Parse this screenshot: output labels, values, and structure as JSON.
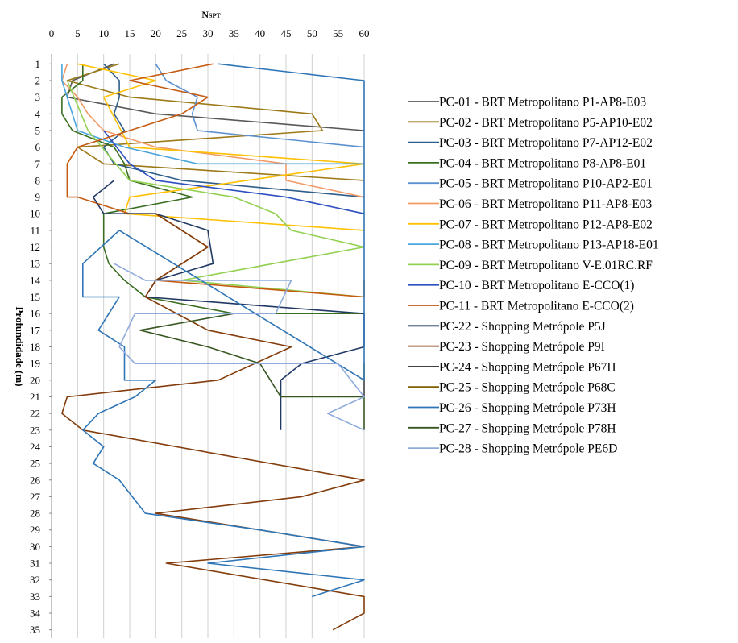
{
  "chart_data": {
    "type": "line",
    "title": "",
    "xlabel": "NSPT",
    "ylabel": "Profundidade (m)",
    "xlim": [
      0,
      60
    ],
    "ylim": [
      1,
      35
    ],
    "x_axis_position": "top",
    "y_axis_inverted": true,
    "grid": "vertical",
    "legend_position": "right",
    "xticks": [
      "0",
      "5",
      "10",
      "15",
      "20",
      "25",
      "30",
      "35",
      "40",
      "45",
      "50",
      "55",
      "60"
    ],
    "yticks": [
      "1",
      "2",
      "3",
      "4",
      "5",
      "6",
      "7",
      "8",
      "9",
      "10",
      "11",
      "12",
      "13",
      "14",
      "15",
      "16",
      "17",
      "18",
      "19",
      "20",
      "21",
      "22",
      "23",
      "24",
      "25",
      "26",
      "27",
      "28",
      "29",
      "30",
      "31",
      "32",
      "33",
      "34",
      "35"
    ],
    "series": [
      {
        "name": "PC-01 - BRT Metropolitano P1-AP8-E03",
        "color": "#595959",
        "points": [
          [
            12,
            1
          ],
          [
            4,
            2
          ],
          [
            3,
            3
          ],
          [
            20,
            4
          ],
          [
            60,
            5
          ]
        ]
      },
      {
        "name": "PC-02 - BRT Metropolitano P5-AP10-E02",
        "color": "#9c7a18",
        "points": [
          [
            13,
            1
          ],
          [
            3,
            2
          ],
          [
            15,
            3
          ],
          [
            50,
            4
          ],
          [
            52,
            5
          ],
          [
            5,
            6
          ],
          [
            10,
            7
          ],
          [
            60,
            8
          ]
        ]
      },
      {
        "name": "PC-03 - BRT Metropolitano P7-AP12-E02",
        "color": "#2e5d8a",
        "points": [
          [
            10,
            1
          ],
          [
            13,
            2
          ],
          [
            13,
            3
          ],
          [
            12,
            4
          ],
          [
            14,
            5
          ],
          [
            10,
            6
          ],
          [
            12,
            7
          ],
          [
            25,
            8
          ],
          [
            60,
            9
          ]
        ]
      },
      {
        "name": "PC-04 - BRT Metropolitano P8-AP8-E01",
        "color": "#3a6e20",
        "points": [
          [
            6,
            1
          ],
          [
            6,
            2
          ],
          [
            2,
            3
          ],
          [
            2,
            4
          ],
          [
            4,
            5
          ],
          [
            12,
            6
          ],
          [
            14,
            7
          ],
          [
            15,
            8
          ],
          [
            27,
            9
          ],
          [
            10,
            10
          ],
          [
            10,
            11
          ],
          [
            10,
            12
          ],
          [
            11,
            13
          ],
          [
            14,
            14
          ],
          [
            18,
            15
          ],
          [
            35,
            16
          ],
          [
            60,
            16
          ]
        ]
      },
      {
        "name": "PC-05 - BRT Metropolitano P10-AP2-E01",
        "color": "#5b91d0",
        "points": [
          [
            20,
            1
          ],
          [
            22,
            2
          ],
          [
            28,
            3
          ],
          [
            27,
            4
          ],
          [
            28,
            5
          ],
          [
            60,
            6
          ]
        ]
      },
      {
        "name": "PC-06 - BRT Metropolitano P11-AP8-E03",
        "color": "#f29a68",
        "points": [
          [
            3,
            1
          ],
          [
            2,
            2
          ],
          [
            5,
            3
          ],
          [
            7,
            4
          ],
          [
            10,
            5
          ],
          [
            20,
            6
          ],
          [
            45,
            7
          ],
          [
            45,
            8
          ],
          [
            60,
            9
          ]
        ]
      },
      {
        "name": "PC-07 - BRT Metropolitano P12-AP8-E02",
        "color": "#ffc000",
        "points": [
          [
            5,
            1
          ],
          [
            20,
            2
          ],
          [
            10,
            3
          ],
          [
            15,
            6
          ],
          [
            60,
            7
          ],
          [
            15,
            9
          ],
          [
            14,
            10
          ],
          [
            60,
            11
          ]
        ]
      },
      {
        "name": "PC-08 - BRT Metropolitano P13-AP18-E01",
        "color": "#4aa6dd",
        "points": [
          [
            2,
            1
          ],
          [
            2,
            2
          ],
          [
            3,
            3
          ],
          [
            5,
            5
          ],
          [
            14,
            6
          ],
          [
            28,
            7
          ],
          [
            60,
            7
          ]
        ]
      },
      {
        "name": "PC-09 - BRT Metropolitano V-E.01RC.RF",
        "color": "#92d050",
        "points": [
          [
            3,
            2
          ],
          [
            7,
            5
          ],
          [
            15,
            8
          ],
          [
            35,
            9
          ],
          [
            43,
            10
          ],
          [
            46,
            11
          ],
          [
            60,
            12
          ],
          [
            25,
            14
          ],
          [
            60,
            15
          ]
        ]
      },
      {
        "name": "PC-10 - BRT Metropolitano E-CCO(1)",
        "color": "#2d4fc0",
        "points": [
          [
            10,
            5
          ],
          [
            15,
            7
          ],
          [
            20,
            8
          ],
          [
            45,
            9
          ],
          [
            60,
            10
          ]
        ]
      },
      {
        "name": "PC-11 - BRT Metropolitano E-CCO(2)",
        "color": "#c55a11",
        "points": [
          [
            31,
            1
          ],
          [
            15,
            2
          ],
          [
            30,
            3
          ],
          [
            25,
            4
          ],
          [
            5,
            6
          ],
          [
            3,
            7
          ],
          [
            3,
            9
          ],
          [
            5,
            9
          ],
          [
            15,
            10
          ],
          [
            20,
            10
          ],
          [
            30,
            12
          ],
          [
            20,
            14
          ],
          [
            60,
            15
          ],
          [
            60,
            14
          ]
        ]
      },
      {
        "name": "PC-22 - Shopping Metrópole P5J",
        "color": "#1f3864",
        "points": [
          [
            12,
            8
          ],
          [
            8,
            9
          ],
          [
            10,
            10
          ],
          [
            20,
            10
          ],
          [
            30,
            11
          ],
          [
            31,
            13
          ],
          [
            20,
            14
          ],
          [
            18,
            15
          ],
          [
            60,
            16
          ],
          [
            60,
            18
          ],
          [
            48,
            19
          ],
          [
            44,
            20
          ],
          [
            44,
            23
          ]
        ]
      },
      {
        "name": "PC-23 - Shopping Metrópole P9I",
        "color": "#833c0b",
        "points": [
          [
            20,
            10
          ],
          [
            30,
            12
          ],
          [
            20,
            14
          ],
          [
            18,
            15
          ],
          [
            30,
            17
          ],
          [
            46,
            18
          ],
          [
            32,
            20
          ],
          [
            3,
            21
          ],
          [
            2,
            22
          ],
          [
            6,
            23
          ],
          [
            60,
            26
          ],
          [
            48,
            27
          ],
          [
            20,
            28
          ],
          [
            60,
            30
          ],
          [
            22,
            31
          ],
          [
            60,
            33
          ],
          [
            60,
            34
          ],
          [
            54,
            35
          ]
        ]
      },
      {
        "name": "PC-24 - Shopping Metrópole P67H",
        "color": "#404040",
        "points": [
          [
            60,
            20
          ],
          [
            60,
            21
          ]
        ]
      },
      {
        "name": "PC-25 - Shopping Metrópole P68C",
        "color": "#7f6000",
        "points": [
          [
            60,
            19
          ],
          [
            60,
            20
          ]
        ]
      },
      {
        "name": "PC-26 - Shopping Metrópole P73H",
        "color": "#2e75b6",
        "points": [
          [
            32,
            1
          ],
          [
            60,
            2
          ],
          [
            60,
            10
          ],
          [
            60,
            16
          ],
          [
            60,
            20
          ],
          [
            13,
            11
          ],
          [
            6,
            13
          ],
          [
            6,
            15
          ],
          [
            13,
            15
          ],
          [
            9,
            17
          ],
          [
            14,
            18
          ],
          [
            14,
            20
          ],
          [
            20,
            20
          ],
          [
            16,
            21
          ],
          [
            9,
            22
          ],
          [
            6,
            23
          ],
          [
            10,
            24
          ],
          [
            8,
            25
          ],
          [
            13,
            26
          ],
          [
            18,
            28
          ],
          [
            40,
            29
          ],
          [
            60,
            30
          ],
          [
            30,
            31
          ],
          [
            60,
            32
          ],
          [
            50,
            33
          ]
        ]
      },
      {
        "name": "PC-27 - Shopping Metrópole P78H",
        "color": "#385723",
        "points": [
          [
            35,
            16
          ],
          [
            17,
            17
          ],
          [
            30,
            18
          ],
          [
            40,
            19
          ],
          [
            42,
            20
          ],
          [
            44,
            21
          ],
          [
            60,
            21
          ],
          [
            60,
            23
          ]
        ]
      },
      {
        "name": "PC-28 - Shopping Metrópole PE6D",
        "color": "#8eaadb",
        "points": [
          [
            12,
            13
          ],
          [
            18,
            14
          ],
          [
            46,
            14
          ],
          [
            43,
            16
          ],
          [
            16,
            16
          ],
          [
            13,
            18
          ],
          [
            16,
            19
          ],
          [
            55,
            19
          ],
          [
            60,
            21
          ],
          [
            53,
            22
          ],
          [
            60,
            23
          ]
        ]
      }
    ]
  }
}
